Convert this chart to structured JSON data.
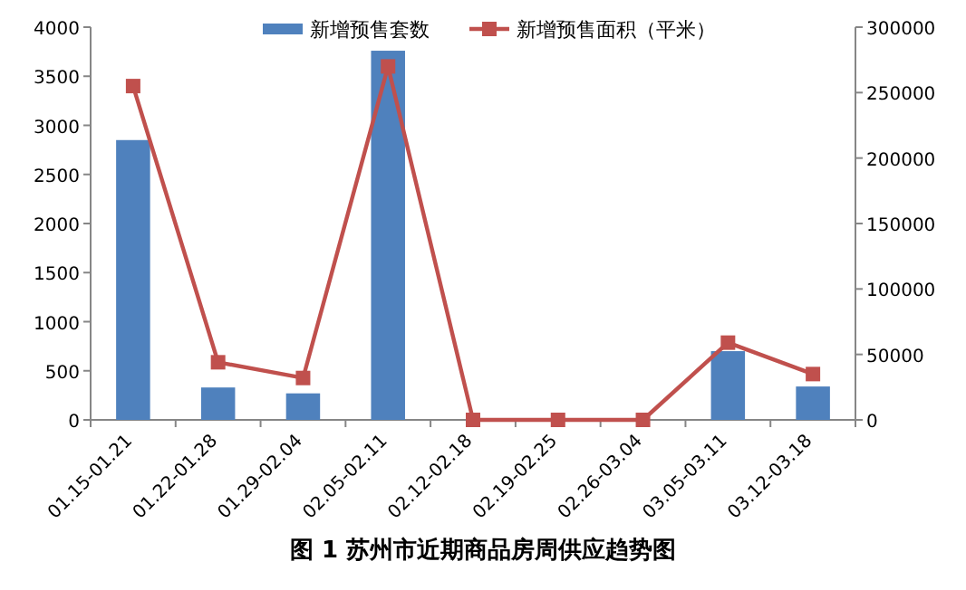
{
  "chart_data": {
    "type": "bar",
    "title": "图 1  苏州市近期商品房周供应趋势图",
    "categories": [
      "01.15-01.21",
      "01.22-01.28",
      "01.29-02.04",
      "02.05-02.11",
      "02.12-02.18",
      "02.19-02.25",
      "02.26-03.04",
      "03.05-03.11",
      "03.12-03.18"
    ],
    "series": [
      {
        "name": "新增预售套数",
        "color": "#4f81bd",
        "values": [
          2850,
          330,
          270,
          3760,
          0,
          0,
          0,
          700,
          340
        ]
      },
      {
        "name": "新增预售面积（平米）",
        "type": "line",
        "axis": "y2",
        "color": "#c0504d",
        "marker": "square",
        "values": [
          255000,
          44000,
          32000,
          270000,
          0,
          0,
          0,
          59000,
          35000
        ]
      }
    ],
    "ylim": [
      0,
      4000
    ],
    "yticks": [
      0,
      500,
      1000,
      1500,
      2000,
      2500,
      3000,
      3500,
      4000
    ],
    "y2lim": [
      0,
      300000
    ],
    "y2ticks": [
      0,
      50000,
      100000,
      150000,
      200000,
      250000,
      300000
    ],
    "legend": "top",
    "grid": false
  }
}
